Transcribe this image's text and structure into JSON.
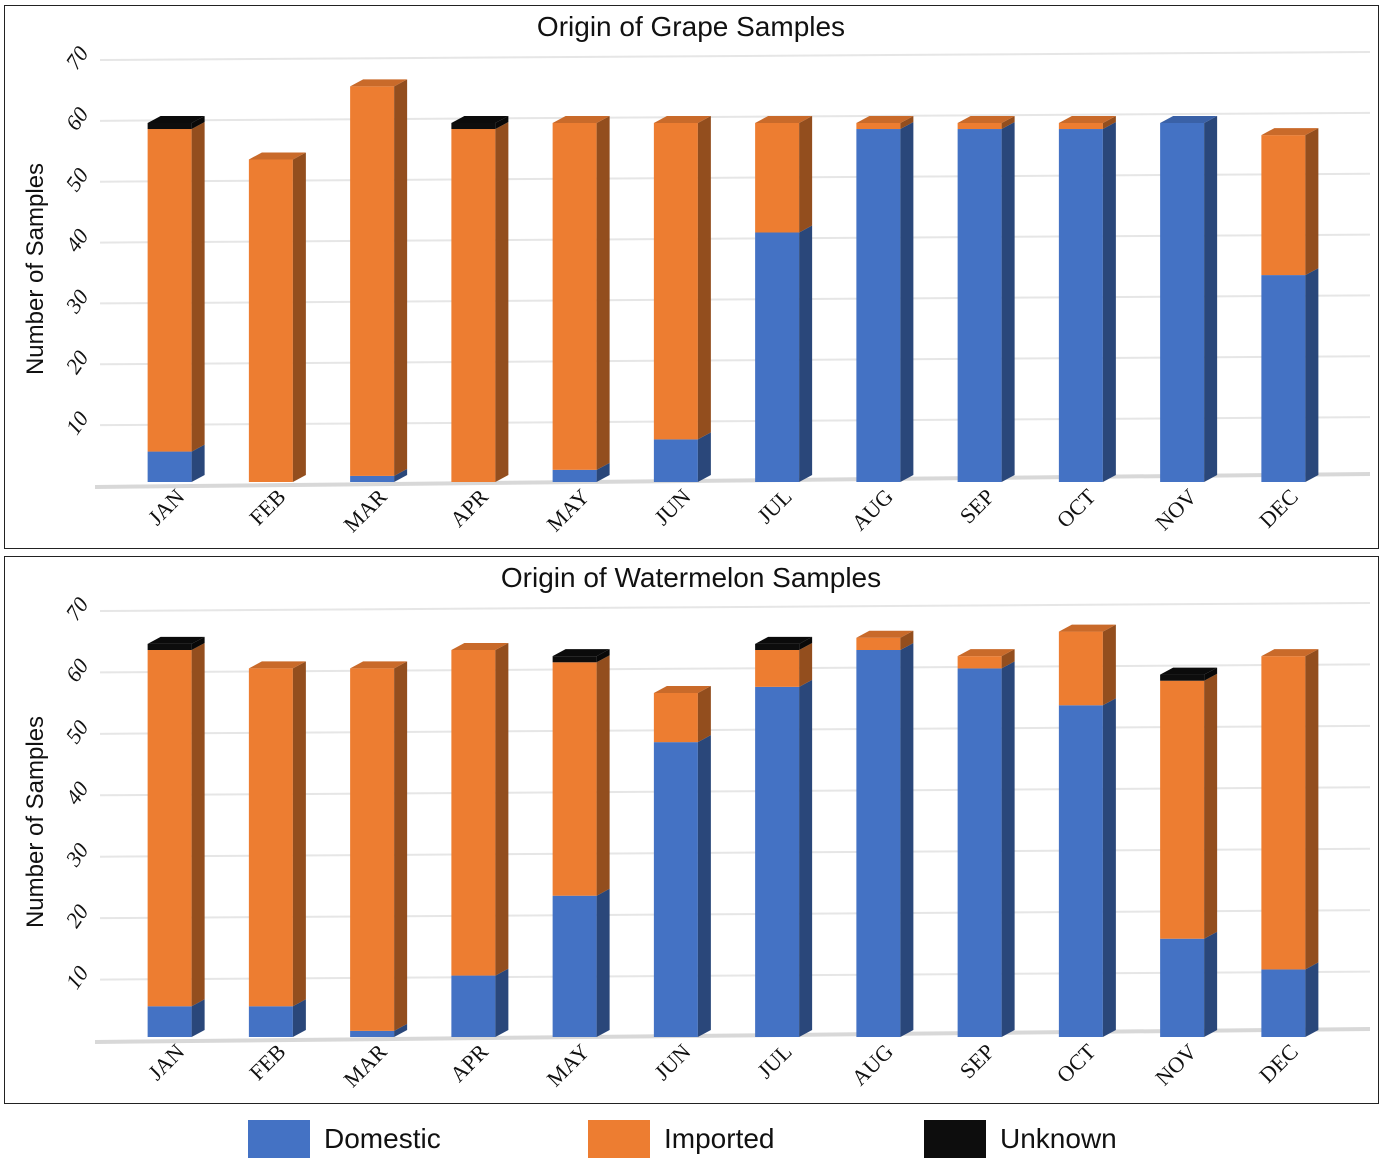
{
  "chart_data": [
    {
      "type": "bar",
      "title": "Origin of Grape Samples",
      "ylabel": "Number of Samples",
      "xlabel": "",
      "ylim": [
        0,
        70
      ],
      "yticks": [
        "10",
        "20",
        "30",
        "40",
        "50",
        "60",
        "70"
      ],
      "categories": [
        "JAN",
        "FEB",
        "MAR",
        "APR",
        "MAY",
        "JUN",
        "JUL",
        "AUG",
        "SEP",
        "OCT",
        "NOV",
        "DEC"
      ],
      "series": [
        {
          "name": "Domestic",
          "values": [
            5,
            0,
            1,
            0,
            2,
            7,
            41,
            58,
            58,
            58,
            59,
            34
          ]
        },
        {
          "name": "Imported",
          "values": [
            53,
            53,
            64,
            58,
            57,
            52,
            18,
            1,
            1,
            1,
            0,
            23
          ]
        },
        {
          "name": "Unknown",
          "values": [
            1,
            0,
            0,
            1,
            0,
            0,
            0,
            0,
            0,
            0,
            0,
            0
          ]
        }
      ],
      "grid": true
    },
    {
      "type": "bar",
      "title": "Origin of Watermelon Samples",
      "ylabel": "Number of Samples",
      "xlabel": "",
      "ylim": [
        0,
        70
      ],
      "yticks": [
        "10",
        "20",
        "30",
        "40",
        "50",
        "60",
        "70"
      ],
      "categories": [
        "JAN",
        "FEB",
        "MAR",
        "APR",
        "MAY",
        "JUN",
        "JUL",
        "AUG",
        "SEP",
        "OCT",
        "NOV",
        "DEC"
      ],
      "series": [
        {
          "name": "Domestic",
          "values": [
            5,
            5,
            1,
            10,
            23,
            48,
            57,
            63,
            60,
            54,
            16,
            11
          ]
        },
        {
          "name": "Imported",
          "values": [
            58,
            55,
            59,
            53,
            38,
            8,
            6,
            2,
            2,
            12,
            42,
            51
          ]
        },
        {
          "name": "Unknown",
          "values": [
            1,
            0,
            0,
            0,
            1,
            0,
            1,
            0,
            0,
            0,
            1,
            0
          ]
        }
      ],
      "grid": true
    }
  ],
  "legend": {
    "placement": "bottom",
    "items": [
      {
        "label": "Domestic",
        "color": "#4472c4"
      },
      {
        "label": "Imported",
        "color": "#ed7d31"
      },
      {
        "label": "Unknown",
        "color": "#0d0d0d"
      }
    ]
  }
}
